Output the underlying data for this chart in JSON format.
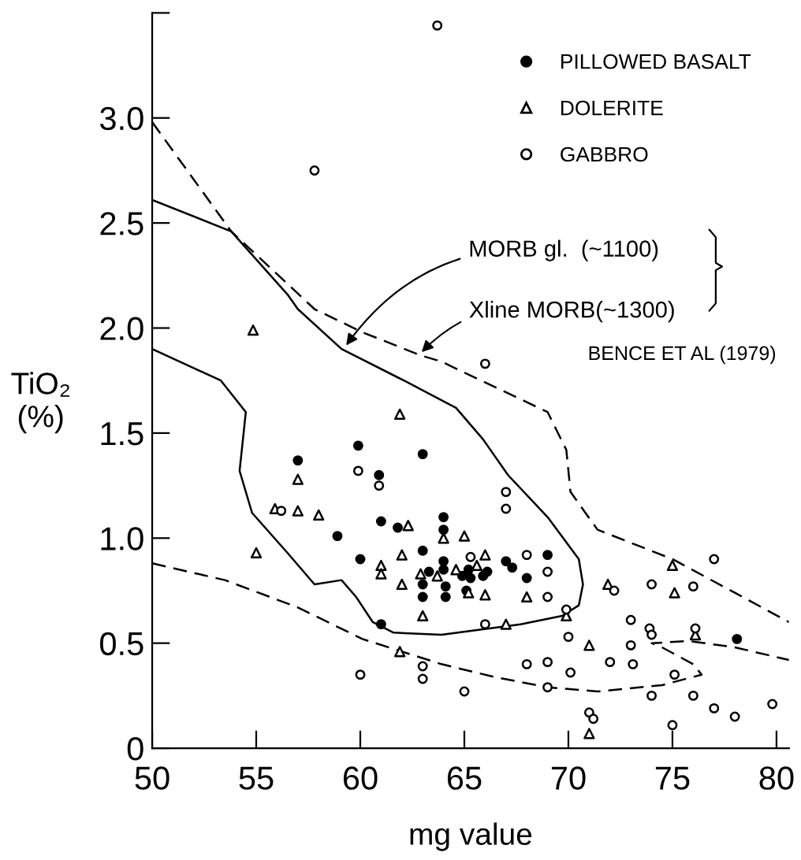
{
  "chart_data": {
    "type": "scatter",
    "xlabel": "mg value",
    "ylabel": "TiO₂\n(%)",
    "xlim": [
      50,
      80.6
    ],
    "ylim": [
      0,
      3.5
    ],
    "xticks": [
      50,
      55,
      60,
      65,
      70,
      75,
      80
    ],
    "yticks": [
      {
        "value": 0,
        "label": "0"
      },
      {
        "value": 0.5,
        "label": "0.5"
      },
      {
        "value": 1.0,
        "label": "1.0"
      },
      {
        "value": 1.5,
        "label": "1.5"
      },
      {
        "value": 2.0,
        "label": "2.0"
      },
      {
        "value": 2.5,
        "label": "2.5"
      },
      {
        "value": 3.0,
        "label": "3.0"
      },
      {
        "value": 3.5,
        "label": null
      }
    ],
    "grid": false,
    "legend": "top right",
    "series": [
      {
        "name": "PILLOWED BASALT",
        "marker": "circle",
        "color": "#000000",
        "x": [
          59.9,
          63.0,
          57.0,
          60.9,
          61.0,
          61.8,
          64.0,
          58.9,
          64.0,
          60.0,
          63.0,
          63.3,
          63.0,
          63.0,
          64.0,
          64.0,
          64.9,
          65.2,
          65.3,
          66.1,
          65.9,
          65.1,
          64.1,
          67.0,
          67.3,
          68.0,
          69.0,
          61.0,
          64.1,
          78.1
        ],
        "values": [
          1.44,
          1.4,
          1.37,
          1.3,
          1.08,
          1.05,
          1.1,
          1.01,
          1.04,
          0.9,
          0.94,
          0.84,
          0.78,
          0.72,
          0.89,
          0.85,
          0.82,
          0.85,
          0.81,
          0.84,
          0.82,
          0.75,
          0.72,
          0.89,
          0.86,
          0.81,
          0.92,
          0.59,
          0.77,
          0.52
        ]
      },
      {
        "name": "DOLERITE",
        "marker": "triangle",
        "color": "#ffffff",
        "x": [
          54.85,
          61.9,
          57.0,
          55.9,
          57.0,
          58.0,
          62.3,
          64.0,
          55.0,
          62.0,
          61.0,
          61.0,
          62.0,
          65.0,
          62.9,
          63.7,
          64.6,
          65.6,
          66.0,
          65.2,
          63.0,
          66.0,
          68.0,
          67.0,
          69.9,
          61.9,
          71.9,
          75.1,
          71.0,
          76.1,
          71.0,
          75.0
        ],
        "values": [
          1.99,
          1.59,
          1.28,
          1.14,
          1.13,
          1.11,
          1.06,
          1.0,
          0.93,
          0.92,
          0.87,
          0.83,
          0.78,
          1.01,
          0.83,
          0.82,
          0.85,
          0.87,
          0.92,
          0.74,
          0.63,
          0.73,
          0.72,
          0.59,
          0.63,
          0.46,
          0.78,
          0.74,
          0.49,
          0.54,
          0.07,
          0.87
        ]
      },
      {
        "name": "GABBRO",
        "marker": "circle",
        "color": "#ffffff",
        "x": [
          63.7,
          57.8,
          59.9,
          60.9,
          56.2,
          65.3,
          68.0,
          69.0,
          69.0,
          67.0,
          67.0,
          66.0,
          66.0,
          69.9,
          63.0,
          63.0,
          60.0,
          72.2,
          74.0,
          76.0,
          70.0,
          73.0,
          73.0,
          73.9,
          74.0,
          76.1,
          68.0,
          69.0,
          70.1,
          72.0,
          73.1,
          75.1,
          69.0,
          65.0,
          74.0,
          76.0,
          77.0,
          78.0,
          71.0,
          71.2,
          75.0,
          77.0,
          79.8
        ],
        "values": [
          3.44,
          2.75,
          1.32,
          1.25,
          1.13,
          0.91,
          0.92,
          0.84,
          0.72,
          1.22,
          1.14,
          1.83,
          0.59,
          0.66,
          0.39,
          0.33,
          0.35,
          0.75,
          0.78,
          0.77,
          0.53,
          0.61,
          0.49,
          0.57,
          0.54,
          0.57,
          0.4,
          0.41,
          0.36,
          0.41,
          0.4,
          0.35,
          0.29,
          0.27,
          0.25,
          0.25,
          0.19,
          0.15,
          0.17,
          0.14,
          0.11,
          0.9,
          0.21
        ]
      },
      {
        "type": "line",
        "line_style": "solid",
        "marker": "none",
        "color": "#000000",
        "x": [
          50,
          53.8,
          56.5,
          57.0,
          59.1,
          62.1,
          64.6,
          65.9,
          67.1,
          69.0,
          70.5,
          70.7,
          70.5,
          69.7,
          67.7,
          65.4,
          63.9,
          61.6,
          60.6,
          59.8,
          59.1,
          57.8,
          56.5,
          54.8,
          54.2,
          54.5,
          53.3,
          50
        ],
        "values": [
          2.61,
          2.46,
          2.16,
          2.09,
          1.9,
          1.75,
          1.62,
          1.47,
          1.3,
          1.1,
          0.9,
          0.78,
          0.68,
          0.63,
          0.59,
          0.56,
          0.54,
          0.55,
          0.6,
          0.72,
          0.8,
          0.78,
          0.93,
          1.12,
          1.32,
          1.6,
          1.75,
          1.9
        ]
      },
      {
        "type": "line",
        "line_style": "dashed",
        "marker": "none",
        "color": "#000000",
        "x": [
          50,
          53.8,
          57.8,
          60.1,
          62.9,
          63.9,
          69.0,
          69.9,
          70.1,
          71.4,
          75.0,
          78.0,
          80.6
        ],
        "values": [
          2.98,
          2.46,
          2.09,
          1.98,
          1.87,
          1.84,
          1.6,
          1.42,
          1.22,
          1.04,
          0.9,
          0.74,
          0.6
        ]
      },
      {
        "type": "line",
        "line_style": "dashed",
        "marker": "none",
        "color": "#000000",
        "x": [
          50,
          53.5,
          57.0,
          60.1,
          63.9,
          66.4,
          69.0,
          71.4,
          74.5,
          76.4,
          76.0,
          74.5,
          74.0,
          75.8,
          78.0,
          80.6
        ],
        "values": [
          0.88,
          0.8,
          0.67,
          0.52,
          0.4,
          0.34,
          0.29,
          0.27,
          0.3,
          0.35,
          0.4,
          0.48,
          0.5,
          0.51,
          0.48,
          0.42
        ]
      }
    ],
    "annotations": [
      {
        "text": "MORB gl.  (~1100)",
        "x": 59.2,
        "y": 1.9
      },
      {
        "text": "Xline MORB(~1300)",
        "x": 62.8,
        "y": 1.87
      },
      "BENCE ET AL (1979)"
    ]
  }
}
